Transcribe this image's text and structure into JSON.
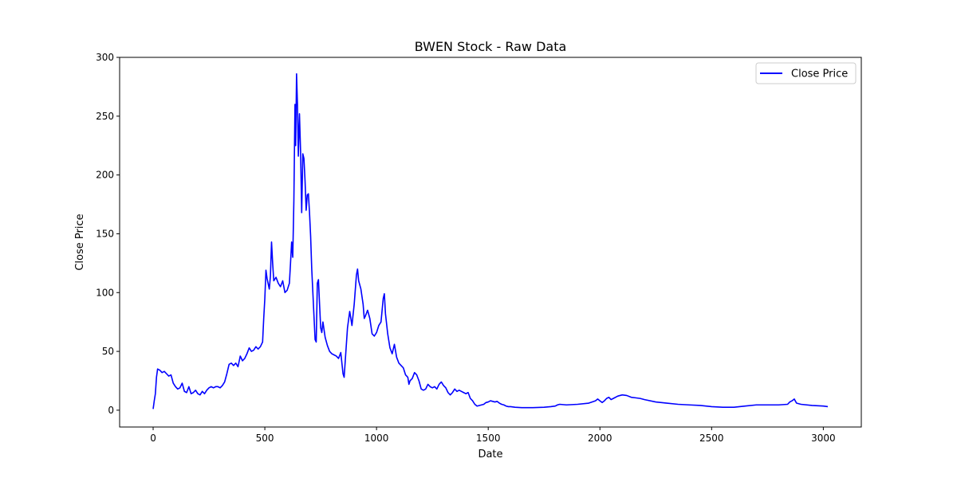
{
  "chart_data": {
    "type": "line",
    "title": "BWEN Stock - Raw Data",
    "xlabel": "Date",
    "ylabel": "Close Price",
    "xlim": [
      -150,
      3170
    ],
    "ylim": [
      -14.3,
      300
    ],
    "xticks": [
      0,
      500,
      1000,
      1500,
      2000,
      2500,
      3000
    ],
    "yticks": [
      0,
      50,
      100,
      150,
      200,
      250,
      300
    ],
    "grid": false,
    "legend_position": "top-right",
    "series": [
      {
        "name": "Close Price",
        "color": "#0000ff",
        "points": [
          [
            0,
            1
          ],
          [
            5,
            8
          ],
          [
            10,
            14
          ],
          [
            15,
            28
          ],
          [
            20,
            35
          ],
          [
            30,
            34
          ],
          [
            40,
            32
          ],
          [
            50,
            33
          ],
          [
            60,
            31
          ],
          [
            70,
            29
          ],
          [
            80,
            30
          ],
          [
            90,
            23
          ],
          [
            100,
            20
          ],
          [
            110,
            18
          ],
          [
            120,
            19
          ],
          [
            130,
            23
          ],
          [
            140,
            16
          ],
          [
            150,
            15
          ],
          [
            160,
            20
          ],
          [
            170,
            14
          ],
          [
            180,
            15
          ],
          [
            190,
            17
          ],
          [
            200,
            14
          ],
          [
            210,
            13
          ],
          [
            220,
            16
          ],
          [
            230,
            14
          ],
          [
            240,
            17
          ],
          [
            250,
            19
          ],
          [
            260,
            20
          ],
          [
            270,
            19
          ],
          [
            280,
            20
          ],
          [
            290,
            20
          ],
          [
            300,
            19
          ],
          [
            310,
            21
          ],
          [
            320,
            24
          ],
          [
            330,
            31
          ],
          [
            340,
            39
          ],
          [
            350,
            40
          ],
          [
            360,
            38
          ],
          [
            370,
            40
          ],
          [
            380,
            37
          ],
          [
            390,
            46
          ],
          [
            400,
            42
          ],
          [
            410,
            44
          ],
          [
            420,
            48
          ],
          [
            430,
            53
          ],
          [
            440,
            50
          ],
          [
            450,
            51
          ],
          [
            460,
            54
          ],
          [
            470,
            52
          ],
          [
            480,
            54
          ],
          [
            490,
            58
          ],
          [
            495,
            78
          ],
          [
            500,
            95
          ],
          [
            505,
            119
          ],
          [
            510,
            112
          ],
          [
            520,
            103
          ],
          [
            525,
            114
          ],
          [
            530,
            143
          ],
          [
            535,
            125
          ],
          [
            540,
            110
          ],
          [
            550,
            113
          ],
          [
            560,
            108
          ],
          [
            570,
            105
          ],
          [
            580,
            110
          ],
          [
            590,
            100
          ],
          [
            600,
            102
          ],
          [
            610,
            108
          ],
          [
            615,
            125
          ],
          [
            620,
            143
          ],
          [
            625,
            130
          ],
          [
            630,
            178
          ],
          [
            635,
            260
          ],
          [
            638,
            225
          ],
          [
            642,
            286
          ],
          [
            646,
            260
          ],
          [
            650,
            216
          ],
          [
            655,
            252
          ],
          [
            660,
            220
          ],
          [
            665,
            168
          ],
          [
            670,
            218
          ],
          [
            675,
            214
          ],
          [
            680,
            195
          ],
          [
            685,
            170
          ],
          [
            690,
            183
          ],
          [
            695,
            184
          ],
          [
            700,
            168
          ],
          [
            705,
            148
          ],
          [
            710,
            120
          ],
          [
            715,
            100
          ],
          [
            720,
            80
          ],
          [
            725,
            60
          ],
          [
            730,
            58
          ],
          [
            735,
            108
          ],
          [
            740,
            111
          ],
          [
            745,
            90
          ],
          [
            750,
            70
          ],
          [
            755,
            66
          ],
          [
            760,
            75
          ],
          [
            770,
            62
          ],
          [
            780,
            55
          ],
          [
            790,
            50
          ],
          [
            800,
            48
          ],
          [
            810,
            47
          ],
          [
            820,
            46
          ],
          [
            830,
            44
          ],
          [
            840,
            49
          ],
          [
            850,
            31
          ],
          [
            855,
            28
          ],
          [
            860,
            42
          ],
          [
            870,
            70
          ],
          [
            880,
            84
          ],
          [
            890,
            72
          ],
          [
            900,
            90
          ],
          [
            910,
            115
          ],
          [
            915,
            120
          ],
          [
            920,
            110
          ],
          [
            930,
            103
          ],
          [
            940,
            90
          ],
          [
            945,
            78
          ],
          [
            950,
            80
          ],
          [
            960,
            85
          ],
          [
            970,
            78
          ],
          [
            980,
            65
          ],
          [
            990,
            63
          ],
          [
            1000,
            66
          ],
          [
            1010,
            72
          ],
          [
            1020,
            75
          ],
          [
            1030,
            95
          ],
          [
            1035,
            99
          ],
          [
            1040,
            82
          ],
          [
            1050,
            65
          ],
          [
            1060,
            53
          ],
          [
            1070,
            48
          ],
          [
            1080,
            56
          ],
          [
            1090,
            45
          ],
          [
            1100,
            40
          ],
          [
            1110,
            38
          ],
          [
            1120,
            36
          ],
          [
            1130,
            30
          ],
          [
            1140,
            28
          ],
          [
            1145,
            22
          ],
          [
            1150,
            25
          ],
          [
            1160,
            27
          ],
          [
            1170,
            32
          ],
          [
            1180,
            30
          ],
          [
            1190,
            25
          ],
          [
            1200,
            18
          ],
          [
            1210,
            17
          ],
          [
            1220,
            18
          ],
          [
            1230,
            22
          ],
          [
            1240,
            20
          ],
          [
            1250,
            19
          ],
          [
            1260,
            20
          ],
          [
            1270,
            18
          ],
          [
            1280,
            22
          ],
          [
            1290,
            24
          ],
          [
            1300,
            21
          ],
          [
            1310,
            19
          ],
          [
            1320,
            15
          ],
          [
            1330,
            13
          ],
          [
            1340,
            15
          ],
          [
            1350,
            18
          ],
          [
            1360,
            16
          ],
          [
            1370,
            17
          ],
          [
            1380,
            16
          ],
          [
            1390,
            15
          ],
          [
            1400,
            14
          ],
          [
            1410,
            15
          ],
          [
            1420,
            10
          ],
          [
            1430,
            8
          ],
          [
            1440,
            5
          ],
          [
            1450,
            3.5
          ],
          [
            1460,
            4
          ],
          [
            1470,
            4.5
          ],
          [
            1480,
            5
          ],
          [
            1490,
            6.5
          ],
          [
            1500,
            7
          ],
          [
            1510,
            8
          ],
          [
            1520,
            7.5
          ],
          [
            1530,
            7
          ],
          [
            1540,
            7.5
          ],
          [
            1550,
            6
          ],
          [
            1560,
            5
          ],
          [
            1570,
            4.5
          ],
          [
            1580,
            3.5
          ],
          [
            1590,
            3
          ],
          [
            1600,
            3
          ],
          [
            1620,
            2.5
          ],
          [
            1650,
            2.2
          ],
          [
            1700,
            2.2
          ],
          [
            1750,
            2.5
          ],
          [
            1780,
            3
          ],
          [
            1800,
            3.5
          ],
          [
            1810,
            4.5
          ],
          [
            1820,
            5
          ],
          [
            1850,
            4.5
          ],
          [
            1900,
            5
          ],
          [
            1950,
            6
          ],
          [
            1980,
            8
          ],
          [
            1990,
            9.5
          ],
          [
            2000,
            8
          ],
          [
            2010,
            6.5
          ],
          [
            2020,
            8
          ],
          [
            2030,
            10
          ],
          [
            2040,
            11
          ],
          [
            2050,
            9
          ],
          [
            2060,
            10
          ],
          [
            2080,
            12
          ],
          [
            2100,
            13
          ],
          [
            2120,
            12.5
          ],
          [
            2140,
            11
          ],
          [
            2160,
            10.5
          ],
          [
            2180,
            10
          ],
          [
            2200,
            9
          ],
          [
            2250,
            7
          ],
          [
            2300,
            6
          ],
          [
            2350,
            5
          ],
          [
            2400,
            4.5
          ],
          [
            2450,
            4
          ],
          [
            2500,
            3
          ],
          [
            2550,
            2.5
          ],
          [
            2600,
            2.5
          ],
          [
            2650,
            3.5
          ],
          [
            2700,
            4.5
          ],
          [
            2750,
            4.5
          ],
          [
            2800,
            4.5
          ],
          [
            2840,
            5
          ],
          [
            2850,
            7
          ],
          [
            2860,
            8
          ],
          [
            2870,
            9.5
          ],
          [
            2880,
            6
          ],
          [
            2900,
            5
          ],
          [
            2950,
            4
          ],
          [
            3000,
            3.5
          ],
          [
            3020,
            3
          ]
        ]
      }
    ]
  }
}
